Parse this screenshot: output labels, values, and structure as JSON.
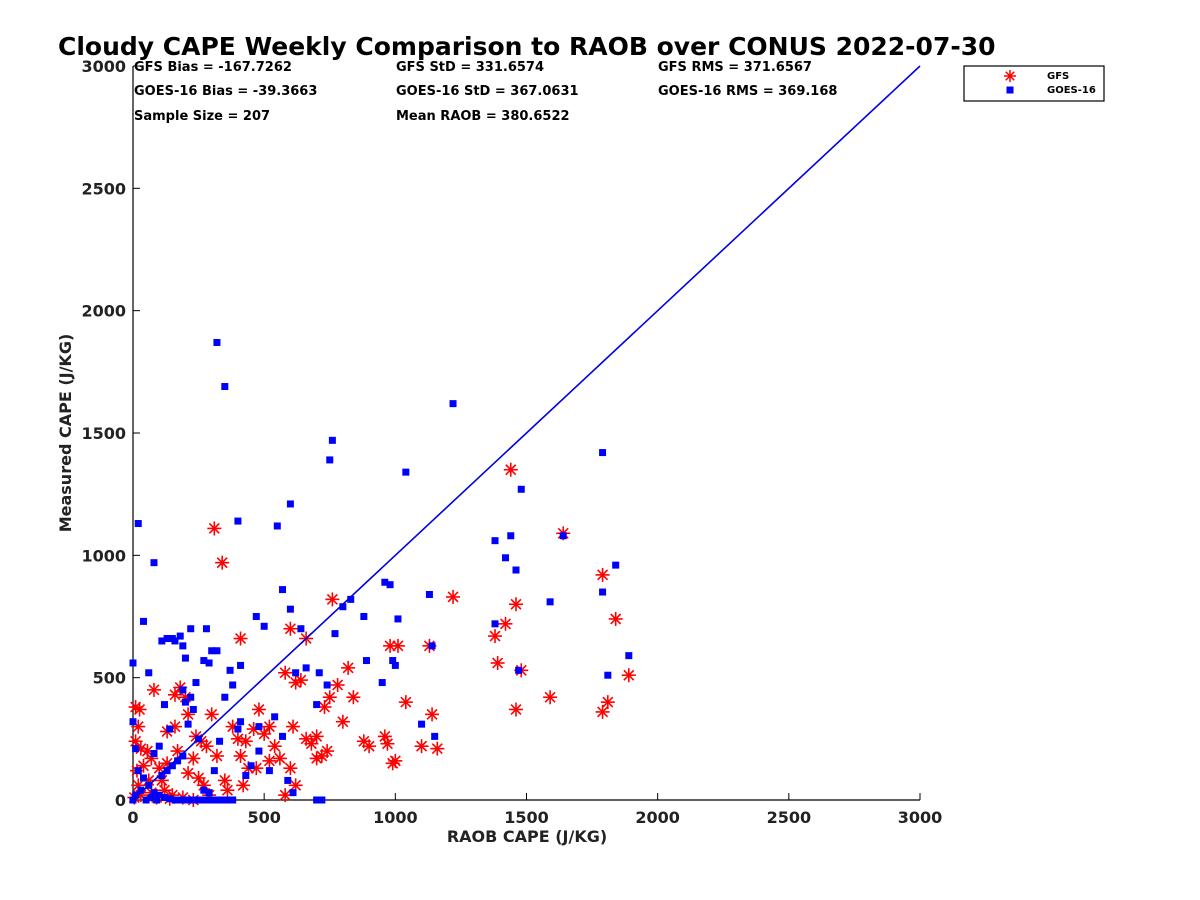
{
  "chart_data": {
    "type": "scatter",
    "title": "Cloudy CAPE Weekly Comparison to RAOB over CONUS 2022-07-30",
    "xlabel": "RAOB CAPE (J/KG)",
    "ylabel": "Measured CAPE (J/KG)",
    "xlim": [
      0,
      3000
    ],
    "ylim": [
      0,
      3000
    ],
    "xticks": [
      0,
      500,
      1000,
      1500,
      2000,
      2500,
      3000
    ],
    "yticks": [
      0,
      500,
      1000,
      1500,
      2000,
      2500,
      3000
    ],
    "xtick_labels": [
      "0",
      "500",
      "1000",
      "1500",
      "2000",
      "2500",
      "3000"
    ],
    "ytick_labels": [
      "0",
      "500",
      "1000",
      "1500",
      "2000",
      "2500",
      "3000"
    ],
    "legend_position": "top-right, outside plot",
    "one_to_one_line": {
      "x": [
        0,
        3000
      ],
      "y": [
        0,
        3000
      ],
      "color": "#0000e6"
    },
    "stats": [
      [
        "GFS Bias = -167.7262",
        "GFS StD = 331.6574",
        "GFS RMS = 371.6567"
      ],
      [
        "GOES-16 Bias = -39.3663",
        "GOES-16 StD = 367.0631",
        "GOES-16 RMS = 369.168"
      ],
      [
        "Sample Size = 207",
        "Mean RAOB = 380.6522",
        ""
      ]
    ],
    "series": [
      {
        "name": "GFS",
        "marker": "asterisk",
        "color": "#ff0000",
        "points": [
          [
            10,
            380
          ],
          [
            25,
            370
          ],
          [
            10,
            240
          ],
          [
            30,
            210
          ],
          [
            55,
            200
          ],
          [
            80,
            450
          ],
          [
            15,
            120
          ],
          [
            40,
            140
          ],
          [
            70,
            170
          ],
          [
            100,
            130
          ],
          [
            20,
            60
          ],
          [
            60,
            80
          ],
          [
            120,
            40
          ],
          [
            150,
            20
          ],
          [
            5,
            10
          ],
          [
            30,
            20
          ],
          [
            90,
            10
          ],
          [
            140,
            5
          ],
          [
            190,
            10
          ],
          [
            230,
            0
          ],
          [
            130,
            280
          ],
          [
            160,
            300
          ],
          [
            180,
            460
          ],
          [
            200,
            420
          ],
          [
            210,
            350
          ],
          [
            240,
            260
          ],
          [
            260,
            240
          ],
          [
            280,
            220
          ],
          [
            300,
            350
          ],
          [
            310,
            1110
          ],
          [
            340,
            970
          ],
          [
            320,
            180
          ],
          [
            350,
            80
          ],
          [
            380,
            300
          ],
          [
            400,
            250
          ],
          [
            410,
            180
          ],
          [
            420,
            60
          ],
          [
            440,
            130
          ],
          [
            460,
            290
          ],
          [
            480,
            370
          ],
          [
            500,
            270
          ],
          [
            520,
            300
          ],
          [
            540,
            220
          ],
          [
            560,
            170
          ],
          [
            580,
            520
          ],
          [
            600,
            700
          ],
          [
            610,
            300
          ],
          [
            620,
            480
          ],
          [
            640,
            490
          ],
          [
            660,
            660
          ],
          [
            680,
            230
          ],
          [
            700,
            260
          ],
          [
            720,
            180
          ],
          [
            730,
            380
          ],
          [
            750,
            420
          ],
          [
            760,
            820
          ],
          [
            780,
            470
          ],
          [
            800,
            320
          ],
          [
            820,
            540
          ],
          [
            840,
            420
          ],
          [
            880,
            240
          ],
          [
            900,
            220
          ],
          [
            960,
            260
          ],
          [
            970,
            230
          ],
          [
            980,
            630
          ],
          [
            1000,
            160
          ],
          [
            990,
            150
          ],
          [
            1010,
            630
          ],
          [
            1040,
            400
          ],
          [
            1100,
            220
          ],
          [
            1130,
            630
          ],
          [
            1140,
            350
          ],
          [
            1160,
            210
          ],
          [
            1220,
            830
          ],
          [
            1380,
            670
          ],
          [
            1390,
            560
          ],
          [
            1420,
            720
          ],
          [
            1440,
            1350
          ],
          [
            1460,
            800
          ],
          [
            1460,
            370
          ],
          [
            1480,
            530
          ],
          [
            1590,
            420
          ],
          [
            1640,
            1090
          ],
          [
            1790,
            920
          ],
          [
            1790,
            360
          ],
          [
            1810,
            400
          ],
          [
            1840,
            740
          ],
          [
            1890,
            510
          ],
          [
            410,
            660
          ],
          [
            20,
            300
          ],
          [
            170,
            200
          ],
          [
            230,
            170
          ],
          [
            250,
            90
          ],
          [
            270,
            60
          ],
          [
            290,
            20
          ],
          [
            360,
            40
          ],
          [
            430,
            240
          ],
          [
            470,
            130
          ],
          [
            520,
            160
          ],
          [
            580,
            20
          ],
          [
            600,
            130
          ],
          [
            620,
            60
          ],
          [
            660,
            250
          ],
          [
            700,
            170
          ],
          [
            740,
            200
          ],
          [
            160,
            430
          ],
          [
            130,
            150
          ],
          [
            70,
            30
          ],
          [
            110,
            80
          ],
          [
            210,
            110
          ]
        ]
      },
      {
        "name": "GOES-16",
        "marker": "square",
        "color": "#0000ff",
        "points": [
          [
            0,
            560
          ],
          [
            0,
            320
          ],
          [
            20,
            1130
          ],
          [
            40,
            730
          ],
          [
            80,
            970
          ],
          [
            110,
            650
          ],
          [
            130,
            660
          ],
          [
            150,
            660
          ],
          [
            160,
            650
          ],
          [
            180,
            670
          ],
          [
            190,
            630
          ],
          [
            200,
            580
          ],
          [
            220,
            700
          ],
          [
            240,
            480
          ],
          [
            270,
            570
          ],
          [
            280,
            700
          ],
          [
            290,
            560
          ],
          [
            300,
            610
          ],
          [
            320,
            610
          ],
          [
            320,
            1870
          ],
          [
            350,
            1690
          ],
          [
            370,
            530
          ],
          [
            400,
            1140
          ],
          [
            410,
            550
          ],
          [
            470,
            750
          ],
          [
            500,
            710
          ],
          [
            550,
            1120
          ],
          [
            570,
            860
          ],
          [
            600,
            780
          ],
          [
            600,
            1210
          ],
          [
            620,
            520
          ],
          [
            640,
            700
          ],
          [
            660,
            540
          ],
          [
            700,
            390
          ],
          [
            710,
            520
          ],
          [
            740,
            470
          ],
          [
            750,
            1390
          ],
          [
            760,
            1470
          ],
          [
            770,
            680
          ],
          [
            800,
            790
          ],
          [
            830,
            820
          ],
          [
            880,
            750
          ],
          [
            890,
            570
          ],
          [
            950,
            480
          ],
          [
            960,
            890
          ],
          [
            980,
            880
          ],
          [
            990,
            570
          ],
          [
            1000,
            550
          ],
          [
            1010,
            740
          ],
          [
            1040,
            1340
          ],
          [
            1100,
            310
          ],
          [
            1130,
            840
          ],
          [
            1140,
            630
          ],
          [
            1150,
            260
          ],
          [
            1220,
            1620
          ],
          [
            1380,
            1060
          ],
          [
            1380,
            720
          ],
          [
            1420,
            990
          ],
          [
            1440,
            1080
          ],
          [
            1460,
            940
          ],
          [
            1470,
            530
          ],
          [
            1480,
            1270
          ],
          [
            1590,
            810
          ],
          [
            1640,
            1080
          ],
          [
            1790,
            1420
          ],
          [
            1790,
            850
          ],
          [
            1810,
            510
          ],
          [
            1840,
            960
          ],
          [
            1890,
            590
          ],
          [
            60,
            520
          ],
          [
            10,
            210
          ],
          [
            20,
            120
          ],
          [
            40,
            90
          ],
          [
            60,
            60
          ],
          [
            80,
            30
          ],
          [
            100,
            20
          ],
          [
            120,
            10
          ],
          [
            140,
            5
          ],
          [
            160,
            0
          ],
          [
            180,
            0
          ],
          [
            200,
            0
          ],
          [
            220,
            0
          ],
          [
            240,
            0
          ],
          [
            260,
            0
          ],
          [
            280,
            0
          ],
          [
            300,
            0
          ],
          [
            320,
            0
          ],
          [
            340,
            0
          ],
          [
            360,
            0
          ],
          [
            380,
            0
          ],
          [
            0,
            0
          ],
          [
            10,
            20
          ],
          [
            30,
            40
          ],
          [
            50,
            0
          ],
          [
            70,
            10
          ],
          [
            90,
            0
          ],
          [
            110,
            100
          ],
          [
            130,
            120
          ],
          [
            150,
            140
          ],
          [
            170,
            160
          ],
          [
            190,
            180
          ],
          [
            210,
            310
          ],
          [
            230,
            370
          ],
          [
            250,
            250
          ],
          [
            270,
            40
          ],
          [
            290,
            30
          ],
          [
            310,
            120
          ],
          [
            330,
            240
          ],
          [
            350,
            420
          ],
          [
            380,
            470
          ],
          [
            400,
            290
          ],
          [
            410,
            320
          ],
          [
            430,
            100
          ],
          [
            450,
            140
          ],
          [
            480,
            200
          ],
          [
            520,
            120
          ],
          [
            540,
            340
          ],
          [
            570,
            260
          ],
          [
            590,
            80
          ],
          [
            610,
            30
          ],
          [
            700,
            0
          ],
          [
            720,
            0
          ],
          [
            480,
            300
          ],
          [
            220,
            420
          ],
          [
            200,
            400
          ],
          [
            190,
            450
          ],
          [
            140,
            290
          ],
          [
            120,
            390
          ],
          [
            100,
            220
          ],
          [
            80,
            190
          ]
        ]
      }
    ]
  }
}
